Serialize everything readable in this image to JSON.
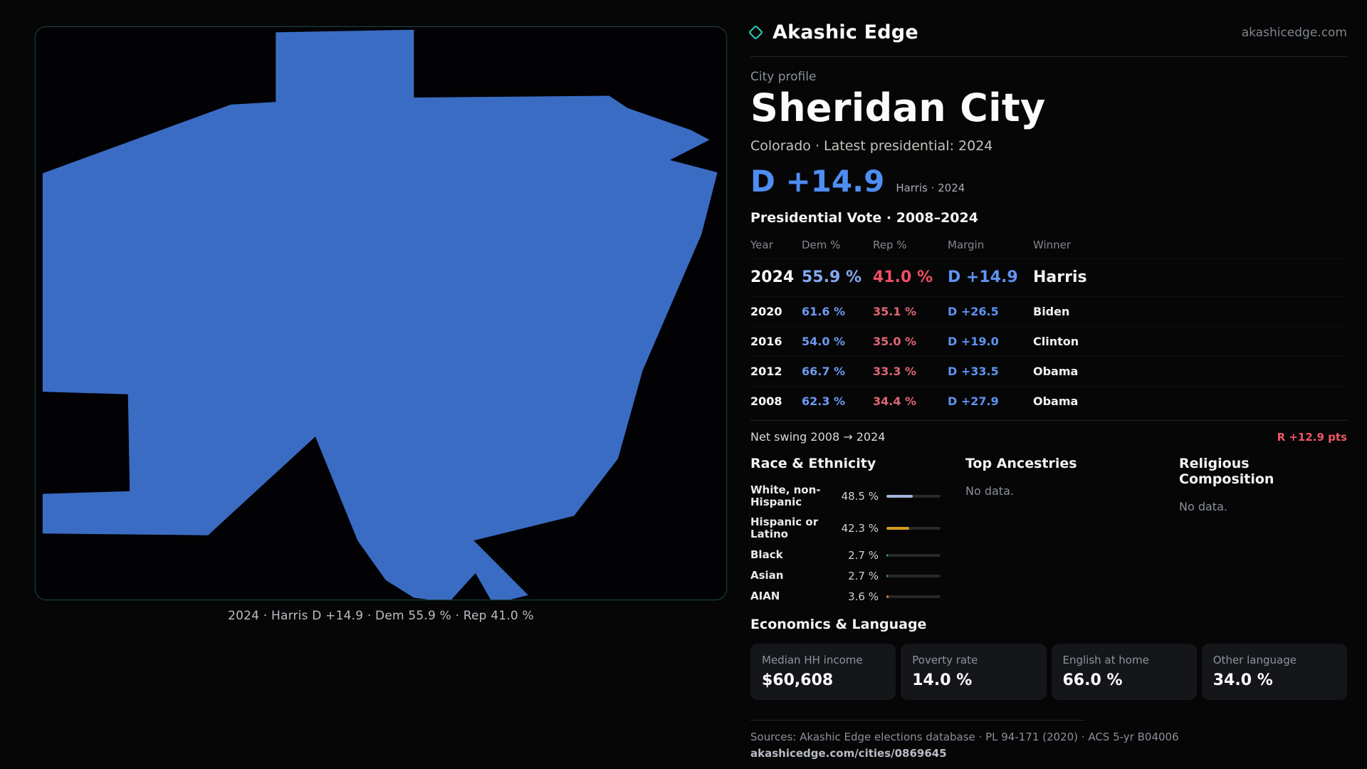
{
  "brand": {
    "name": "Akashic Edge",
    "domain": "akashicedge.com"
  },
  "colors": {
    "accent_teal": "#2ed3c0",
    "dem_blue": "#5f93f2",
    "rep_red": "#ee4e62",
    "swing_red": "#ef5565"
  },
  "map": {
    "fill": "#3b6cc4",
    "caption": "2024 · Harris D +14.9 · Dem 55.9 % · Rep 41.0 %"
  },
  "profile": {
    "kicker": "City profile",
    "title": "Sheridan City",
    "subtitle": "Colorado · Latest presidential: 2024",
    "headline_margin": "D +14.9",
    "headline_note": "Harris · 2024"
  },
  "vote_table": {
    "title": "Presidential Vote · 2008–2024",
    "columns": {
      "year": "Year",
      "dem": "Dem %",
      "rep": "Rep %",
      "margin": "Margin",
      "winner": "Winner"
    },
    "rows": [
      {
        "year": "2024",
        "dem": "55.9 %",
        "rep": "41.0 %",
        "margin": "D +14.9",
        "winner": "Harris"
      },
      {
        "year": "2020",
        "dem": "61.6 %",
        "rep": "35.1 %",
        "margin": "D +26.5",
        "winner": "Biden"
      },
      {
        "year": "2016",
        "dem": "54.0 %",
        "rep": "35.0 %",
        "margin": "D +19.0",
        "winner": "Clinton"
      },
      {
        "year": "2012",
        "dem": "66.7 %",
        "rep": "33.3 %",
        "margin": "D +33.5",
        "winner": "Obama"
      },
      {
        "year": "2008",
        "dem": "62.3 %",
        "rep": "34.4 %",
        "margin": "D +27.9",
        "winner": "Obama"
      }
    ]
  },
  "net_swing": {
    "label": "Net swing 2008 → 2024",
    "value": "R +12.9 pts"
  },
  "demographics": {
    "race": {
      "title": "Race & Ethnicity",
      "items": [
        {
          "label": "White, non-Hispanic",
          "value": "48.5 %",
          "pct": 48.5,
          "color": "#a3b4d9"
        },
        {
          "label": "Hispanic or Latino",
          "value": "42.3 %",
          "pct": 42.3,
          "color": "#d39c1e"
        },
        {
          "label": "Black",
          "value": "2.7 %",
          "pct": 2.7,
          "color": "#2f9e63"
        },
        {
          "label": "Asian",
          "value": "2.7 %",
          "pct": 2.7,
          "color": "#2f9e63"
        },
        {
          "label": "AIAN",
          "value": "3.6 %",
          "pct": 3.6,
          "color": "#e0762e"
        }
      ]
    },
    "ancestries": {
      "title": "Top Ancestries",
      "empty": "No data."
    },
    "religion": {
      "title": "Religious Composition",
      "empty": "No data."
    }
  },
  "economics": {
    "title": "Economics & Language",
    "stats": [
      {
        "label": "Median HH income",
        "value": "$60,608"
      },
      {
        "label": "Poverty rate",
        "value": "14.0 %"
      },
      {
        "label": "English at home",
        "value": "66.0 %"
      },
      {
        "label": "Other language",
        "value": "34.0 %"
      }
    ]
  },
  "footer": {
    "sources": "Sources: Akashic Edge elections database · PL 94-171 (2020) · ACS 5-yr B04006",
    "permalink": "akashicedge.com/cities/0869645"
  }
}
